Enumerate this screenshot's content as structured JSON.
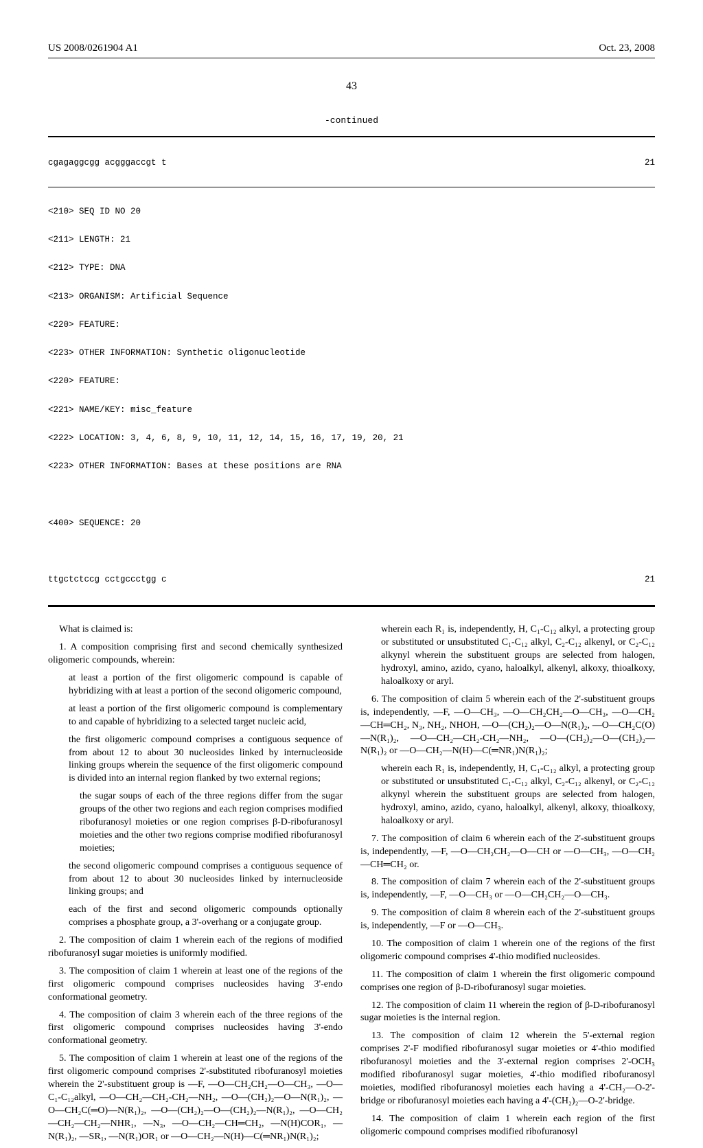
{
  "header": {
    "pub_no": "US 2008/0261904 A1",
    "date": "Oct. 23, 2008"
  },
  "page_number": "43",
  "continued_label": "-continued",
  "sequence": {
    "top_seq": "cgagaggcgg acgggaccgt t",
    "top_len": "21",
    "lines": [
      "<210> SEQ ID NO 20",
      "<211> LENGTH: 21",
      "<212> TYPE: DNA",
      "<213> ORGANISM: Artificial Sequence",
      "<220> FEATURE:",
      "<223> OTHER INFORMATION: Synthetic oligonucleotide",
      "<220> FEATURE:",
      "<221> NAME/KEY: misc_feature",
      "<222> LOCATION: 3, 4, 6, 8, 9, 10, 11, 12, 14, 15, 16, 17, 19, 20, 21",
      "<223> OTHER INFORMATION: Bases at these positions are RNA"
    ],
    "seq_tag": "<400> SEQUENCE: 20",
    "bottom_seq": "ttgctctccg cctgccctgg c",
    "bottom_len": "21"
  },
  "left": {
    "what_is_claimed": "What is claimed is:",
    "c1_lead": "1. A composition comprising first and second chemically synthesized oligomeric compounds, wherein:",
    "c1_a": "at least a portion of the first oligomeric compound is capable of hybridizing with at least a portion of the second oligomeric compound,",
    "c1_b": "at least a portion of the first oligomeric compound is complementary to and capable of hybridizing to a selected target nucleic acid,",
    "c1_c": "the first oligomeric compound comprises a contiguous sequence of from about 12 to about 30 nucleosides linked by internucleoside linking groups wherein the sequence of the first oligomeric compound is divided into an internal region flanked by two external regions;",
    "c1_c_sub": "the sugar soups of each of the three regions differ from the sugar groups of the other two regions and each region comprises modified ribofuranosyl moieties or one region comprises β-D-ribofuranosyl moieties and the other two regions comprise modified ribofuranosyl moieties;",
    "c1_d": "the second oligomeric compound comprises a contiguous sequence of from about 12 to about 30 nucleosides linked by internucleoside linking groups; and",
    "c1_e": "each of the first and second oligomeric compounds optionally comprises a phosphate group, a 3'-overhang or a conjugate group.",
    "c2": "2. The composition of claim 1 wherein each of the regions of modified ribofuranosyl sugar moieties is uniformly modified.",
    "c3": "3. The composition of claim 1 wherein at least one of the regions of the first oligomeric compound comprises nucleosides having 3'-endo conformational geometry.",
    "c4": "4. The composition of claim 3 wherein each of the three regions of the first oligomeric compound comprises nucleosides having 3'-endo conformational geometry.",
    "c5": "5. The composition of claim 1 wherein at least one of the regions of the first oligomeric compound comprises 2'-substituted ribofuranosyl moieties wherein the 2'-substituent group is —F, —O—CH₂CH₂—O—CH₃, —O—C₁-C₁₂alkyl, —O—CH₂—CH₂-CH₂—NH₂, —O—(CH₂)₂—O—N(R₁)₂, —O—CH₂C(═O)—N(R₁)₂, —O—(CH₂)₂—O—(CH₂)₂—N(R₁)₂, —O—CH₂—CH₂—CH₂—NHR₁, —N₃, —O—CH₂—CH═CH₂, —N(H)COR₁, —N(R₁)₂, —SR₁, —N(R₁)OR₁ or —O—CH₂—N(H)—C(═NR₁)N(R₁)₂;"
  },
  "right": {
    "c5_where": "wherein each R₁ is, independently, H, C₁-C₁₂ alkyl, a protecting group or substituted or unsubstituted C₁-C₁₂ alkyl, C₂-C₁₂ alkenyl, or C₂-C₁₂ alkynyl wherein the substituent groups are selected from halogen, hydroxyl, amino, azido, cyano, haloalkyl, alkenyl, alkoxy, thioalkoxy, haloalkoxy or aryl.",
    "c6": "6. The composition of claim 5 wherein each of the 2'-substituent groups is, independently, —F, —O—CH₃, —O—CH₂CH₂—O—CH₃, —O—CH₂—CH═CH₂, N₃, NH₂, NHOH, —O—(CH₂)₂—O—N(R₁)₂, —O—CH₂C(O)—N(R₁)₂, —O—CH₂—CH₂-CH₂—NH₂, —O—(CH₂)₂—O—(CH₂)₂—N(R₁)₂ or —O—CH₂—N(H)—C(═NR₁)N(R₁)₂;",
    "c6_where": "wherein each R₁ is, independently, H, C₁-C₁₂ alkyl, a protecting group or substituted or unsubstituted C₁-C₁₂ alkyl, C₂-C₁₂ alkenyl, or C₂-C₁₂ alkynyl wherein the substituent groups are selected from halogen, hydroxyl, amino, azido, cyano, haloalkyl, alkenyl, alkoxy, thioalkoxy, haloalkoxy or aryl.",
    "c7": "7. The composition of claim 6 wherein each of the 2'-substituent groups is, independently, —F, —O—CH₂CH₂—O—CH or —O—CH₃, —O—CH₂—CH═CH₂ or.",
    "c8": "8. The composition of claim 7 wherein each of the 2'-substituent groups is, independently, —F, —O—CH₃ or —O—CH₂CH₂—O—CH₃.",
    "c9": "9. The composition of claim 8 wherein each of the 2'-substituent groups is, independently, —F or —O—CH₃.",
    "c10": "10. The composition of claim 1 wherein one of the regions of the first oligomeric compound comprises 4'-thio modified nucleosides.",
    "c11": "11. The composition of claim 1 wherein the first oligomeric compound comprises one region of β-D-ribofuranosyl sugar moieties.",
    "c12": "12. The composition of claim 11 wherein the region of β-D-ribofuranosyl sugar moieties is the internal region.",
    "c13": "13. The composition of claim 12 wherein the 5'-external region comprises 2'-F modified ribofuranosyl sugar moieties or 4'-thio modified ribofuranosyl moieties and the 3'-external region comprises 2'-OCH₃ modified ribofuranosyl sugar moieties, 4'-thio modified ribofuranosyl moieties, modified ribofuranosyl moieties each having a 4'-CH₂—O-2'-bridge or ribofuranosyl moieties each having a 4'-(CH₂)₂—O-2'-bridge.",
    "c14": "14. The composition of claim 1 wherein each region of the first oligomeric compound comprises modified ribofuranosyl"
  }
}
